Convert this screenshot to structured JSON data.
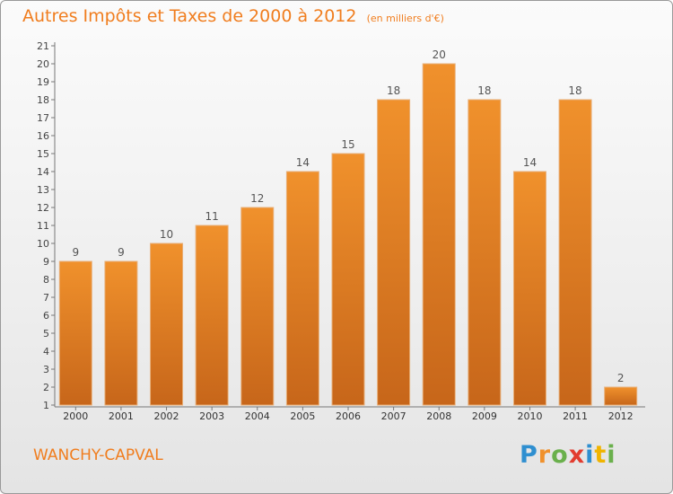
{
  "chart_data": {
    "type": "bar",
    "title": "Autres Impôts et Taxes de 2000 à 2012",
    "subtitle": "(en milliers d'€)",
    "categories": [
      "2000",
      "2001",
      "2002",
      "2003",
      "2004",
      "2005",
      "2006",
      "2007",
      "2008",
      "2009",
      "2010",
      "2011",
      "2012"
    ],
    "values": [
      9,
      9,
      10,
      11,
      12,
      14,
      15,
      18,
      20,
      18,
      14,
      18,
      2
    ],
    "ylim": [
      1,
      21
    ],
    "yticks": [
      1,
      2,
      3,
      4,
      5,
      6,
      7,
      8,
      9,
      10,
      11,
      12,
      13,
      14,
      15,
      16,
      17,
      18,
      19,
      20,
      21
    ],
    "grid": false,
    "bar_color": "#f0912c",
    "bar_color_dark": "#c7661a",
    "label_color": "#555555"
  },
  "footer": {
    "commune": "WANCHY-CAPVAL",
    "logo_letters": [
      {
        "ch": "P",
        "color": "#2f8fd0"
      },
      {
        "ch": "r",
        "color": "#f0912c"
      },
      {
        "ch": "o",
        "color": "#6ab04c"
      },
      {
        "ch": "x",
        "color": "#e23c2f"
      },
      {
        "ch": "i",
        "color": "#2f8fd0"
      },
      {
        "ch": "t",
        "color": "#f0b400"
      },
      {
        "ch": "i",
        "color": "#6ab04c"
      }
    ]
  }
}
